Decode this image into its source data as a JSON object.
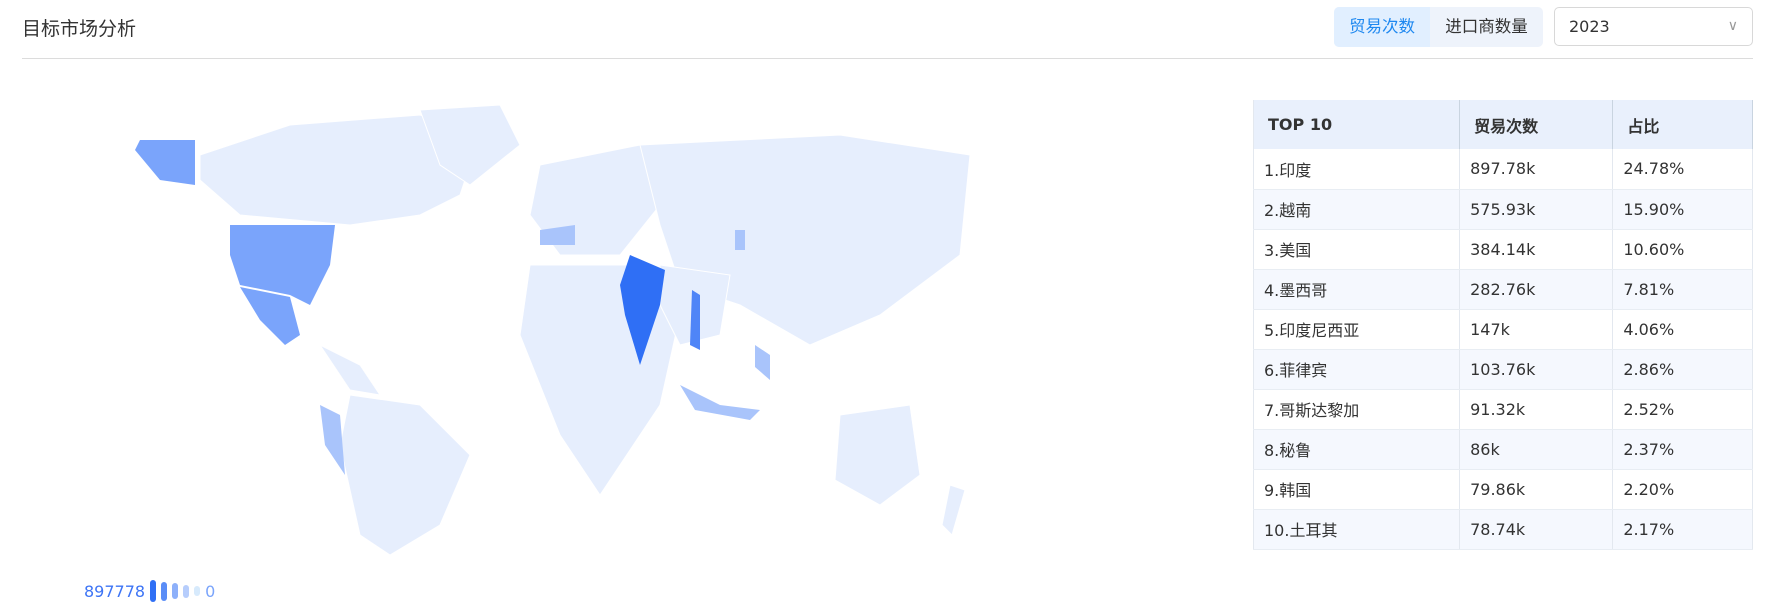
{
  "header": {
    "title": "目标市场分析",
    "tabs": [
      {
        "label": "贸易次数",
        "active": true
      },
      {
        "label": "进口商数量",
        "active": false
      }
    ],
    "year_select": "2023",
    "chevron_icon": "chevron-down-icon"
  },
  "colors": {
    "max": "#2f6ff5",
    "high": "#7aa4fb",
    "mid": "#a9c4fb",
    "low": "#e6eefd",
    "accent": "#1e88f0"
  },
  "legend": {
    "max": "897778",
    "min": "0"
  },
  "table": {
    "headers": [
      "TOP 10",
      "贸易次数",
      "占比"
    ],
    "rows": [
      [
        "1.印度",
        "897.78k",
        "24.78%"
      ],
      [
        "2.越南",
        "575.93k",
        "15.90%"
      ],
      [
        "3.美国",
        "384.14k",
        "10.60%"
      ],
      [
        "4.墨西哥",
        "282.76k",
        "7.81%"
      ],
      [
        "5.印度尼西亚",
        "147k",
        "4.06%"
      ],
      [
        "6.菲律宾",
        "103.76k",
        "2.86%"
      ],
      [
        "7.哥斯达黎加",
        "91.32k",
        "2.52%"
      ],
      [
        "8.秘鲁",
        "86k",
        "2.37%"
      ],
      [
        "9.韩国",
        "79.86k",
        "2.20%"
      ],
      [
        "10.土耳其",
        "78.74k",
        "2.17%"
      ]
    ]
  }
}
